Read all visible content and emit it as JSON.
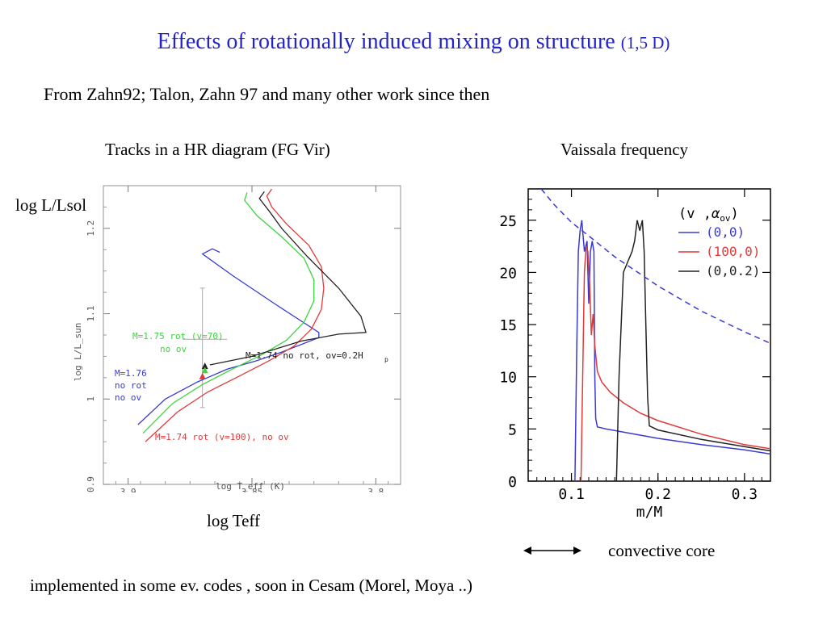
{
  "slide": {
    "title": "Effects of rotationally induced mixing  on structure",
    "title_suffix": "(1,5 D)",
    "subtitle": "From Zahn92;  Talon, Zahn 97 and many other work  since then",
    "hr_heading": "Tracks in a HR diagram (FG Vir)",
    "vf_heading": "Vaissala frequency",
    "hr_ylabel_outer": "log L/Lsol",
    "hr_xlabel_outer": "log Teff",
    "convective_core_label": "convective core",
    "footer": "implemented in some ev. codes , soon in Cesam (Morel, Moya ..)"
  },
  "colors": {
    "title": "#2323c8",
    "blue": "#3a3ad0",
    "red": "#e03a3a",
    "green": "#3ed43e",
    "black": "#222222"
  },
  "chart_data": [
    {
      "type": "line",
      "title": "Tracks in a HR diagram (FG Vir)",
      "xlabel": "log T_eff (K)",
      "ylabel": "log L/L_sun",
      "xlim": [
        3.91,
        3.79
      ],
      "ylim": [
        0.9,
        1.25
      ],
      "x_inverted": true,
      "xticks": [
        "3.9",
        "3.85",
        "3.8"
      ],
      "yticks": [
        "0.9",
        "1",
        "1.1",
        "1.2"
      ],
      "series": [
        {
          "name": "M=1.76 no rot no ov",
          "color": "blue",
          "x": [
            3.896,
            3.885,
            3.872,
            3.86,
            3.848,
            3.838,
            3.83,
            3.823,
            3.823,
            3.84,
            3.858,
            3.87,
            3.866,
            3.863
          ],
          "y": [
            0.97,
            1.0,
            1.02,
            1.035,
            1.045,
            1.055,
            1.064,
            1.072,
            1.078,
            1.11,
            1.145,
            1.17,
            1.176,
            1.172
          ]
        },
        {
          "name": "M=1.74 rot (v=100), no ov",
          "color": "red",
          "x": [
            3.893,
            3.88,
            3.868,
            3.855,
            3.843,
            3.833,
            3.826,
            3.822,
            3.821,
            3.822,
            3.827,
            3.836,
            3.842,
            3.844,
            3.842
          ],
          "y": [
            0.95,
            0.985,
            1.008,
            1.027,
            1.045,
            1.062,
            1.082,
            1.105,
            1.13,
            1.155,
            1.18,
            1.205,
            1.225,
            1.238,
            1.246
          ]
        },
        {
          "name": "M=1.75 rot (v=70) no ov",
          "color": "green",
          "x": [
            3.894,
            3.882,
            3.87,
            3.858,
            3.846,
            3.836,
            3.829,
            3.825,
            3.825,
            3.829,
            3.838,
            3.848,
            3.853,
            3.852
          ],
          "y": [
            0.96,
            0.995,
            1.017,
            1.035,
            1.052,
            1.069,
            1.09,
            1.115,
            1.14,
            1.165,
            1.19,
            1.215,
            1.233,
            1.242
          ]
        },
        {
          "name": "M=1.74 no rot, ov=0.2Hp",
          "color": "black",
          "x": [
            3.867,
            3.85,
            3.83,
            3.815,
            3.804,
            3.806,
            3.815,
            3.828,
            3.838,
            3.843,
            3.847,
            3.845
          ],
          "y": [
            1.04,
            1.05,
            1.068,
            1.076,
            1.078,
            1.097,
            1.13,
            1.168,
            1.2,
            1.22,
            1.235,
            1.243
          ]
        }
      ],
      "markers": [
        {
          "color": "black",
          "shape": "triangle",
          "x": 3.869,
          "y": 1.038
        },
        {
          "color": "green",
          "shape": "triangle",
          "x": 3.869,
          "y": 1.033
        },
        {
          "color": "red",
          "shape": "triangle",
          "x": 3.87,
          "y": 1.026
        }
      ],
      "error_bar": {
        "x": 3.87,
        "y": [
          0.99,
          1.13
        ],
        "x_range": [
          3.86,
          3.878
        ],
        "y_center": 1.07
      },
      "annotations": [
        {
          "text": "M=1.75 rot (v=70)",
          "color": "green"
        },
        {
          "text": "no ov",
          "color": "green"
        },
        {
          "text": "M=1.74 no rot, ov=0.2H",
          "color": "black"
        },
        {
          "text": "M=1.76",
          "color": "blue"
        },
        {
          "text": "no rot",
          "color": "blue"
        },
        {
          "text": "no ov",
          "color": "blue"
        },
        {
          "text": "M=1.74 rot (v=100), no ov",
          "color": "red"
        }
      ]
    },
    {
      "type": "line",
      "title": "Vaissala frequency",
      "xlabel": "m/M",
      "ylabel": "",
      "xlim": [
        0.05,
        0.33
      ],
      "ylim": [
        0,
        28
      ],
      "xticks": [
        "0.1",
        "0.2",
        "0.3"
      ],
      "yticks": [
        "0",
        "5",
        "10",
        "15",
        "20",
        "25"
      ],
      "legend": {
        "title": "(v ,α_ov)",
        "placement": "top-right",
        "entries": [
          "(0,0)",
          "(100,0)",
          "(0,0.2)"
        ]
      },
      "series": [
        {
          "name": "(0,0)",
          "color": "blue",
          "x": [
            0.104,
            0.106,
            0.108,
            0.11,
            0.112,
            0.115,
            0.118,
            0.12,
            0.122,
            0.124,
            0.126,
            0.127,
            0.128,
            0.13,
            0.14,
            0.16,
            0.2,
            0.25,
            0.3,
            0.33
          ],
          "y": [
            0,
            12,
            22,
            24,
            25,
            22,
            23,
            17,
            22,
            23,
            22,
            10,
            6,
            5.2,
            5.0,
            4.7,
            4.1,
            3.5,
            3.0,
            2.6
          ]
        },
        {
          "name": "(100,0)",
          "color": "red",
          "x": [
            0.111,
            0.113,
            0.115,
            0.117,
            0.119,
            0.121,
            0.123,
            0.125,
            0.127,
            0.13,
            0.135,
            0.145,
            0.16,
            0.18,
            0.2,
            0.25,
            0.3,
            0.33
          ],
          "y": [
            0,
            10,
            20,
            22.5,
            22,
            19,
            14,
            16,
            13,
            10.5,
            9.5,
            8.5,
            7.5,
            6.5,
            5.8,
            4.5,
            3.5,
            3.1
          ]
        },
        {
          "name": "(0,0.2)",
          "color": "black",
          "x": [
            0.152,
            0.155,
            0.158,
            0.16,
            0.165,
            0.17,
            0.173,
            0.176,
            0.179,
            0.182,
            0.184,
            0.186,
            0.188,
            0.19,
            0.2,
            0.25,
            0.3,
            0.33
          ],
          "y": [
            0,
            10,
            16,
            20,
            21,
            22,
            23,
            25,
            24,
            25,
            22,
            15,
            8,
            5.3,
            4.9,
            4.0,
            3.3,
            2.9
          ]
        },
        {
          "name": "dashed",
          "color": "blue",
          "dashed": true,
          "x": [
            0.065,
            0.08,
            0.1,
            0.12,
            0.15,
            0.2,
            0.25,
            0.3,
            0.33
          ],
          "y": [
            28,
            26.5,
            24.8,
            23.5,
            21.5,
            18.7,
            16.3,
            14.3,
            13.2
          ]
        }
      ]
    }
  ]
}
